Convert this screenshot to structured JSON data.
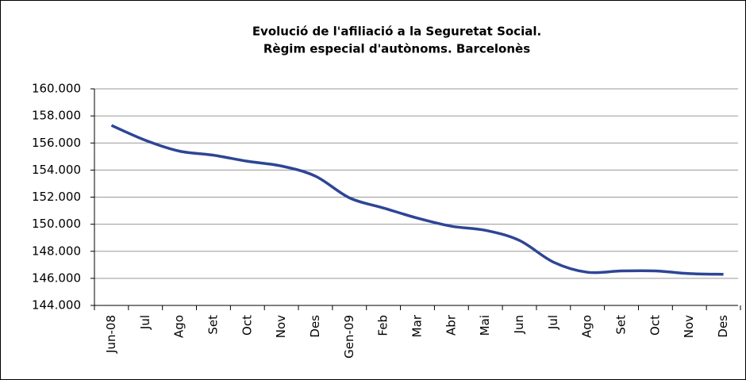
{
  "chart_data": {
    "type": "line",
    "title": [
      "Evolució de l'afiliació a la Seguretat Social.",
      "Règim especial d'autònoms. Barcelonès"
    ],
    "categories": [
      "Jun-08",
      "Jul",
      "Ago",
      "Set",
      "Oct",
      "Nov",
      "Des",
      "Gen-09",
      "Feb",
      "Mar",
      "Abr",
      "Mai",
      "Jun",
      "Jul",
      "Ago",
      "Set",
      "Oct",
      "Nov",
      "Des"
    ],
    "series": [
      {
        "color": "#2e4595",
        "values": [
          157300,
          156200,
          155400,
          155100,
          154650,
          154300,
          153550,
          151950,
          151200,
          150450,
          149850,
          149550,
          148800,
          147200,
          146450,
          146550,
          146550,
          146350,
          146300
        ]
      }
    ],
    "ylim": [
      144000,
      160000
    ],
    "yticks": [
      {
        "value": 144000,
        "label": "144.000"
      },
      {
        "value": 146000,
        "label": "146.000"
      },
      {
        "value": 148000,
        "label": "148.000"
      },
      {
        "value": 150000,
        "label": "150.000"
      },
      {
        "value": 152000,
        "label": "152.000"
      },
      {
        "value": 154000,
        "label": "154.000"
      },
      {
        "value": 156000,
        "label": "156.000"
      },
      {
        "value": 158000,
        "label": "158.000"
      },
      {
        "value": 160000,
        "label": "160.000"
      }
    ],
    "grid": true
  }
}
